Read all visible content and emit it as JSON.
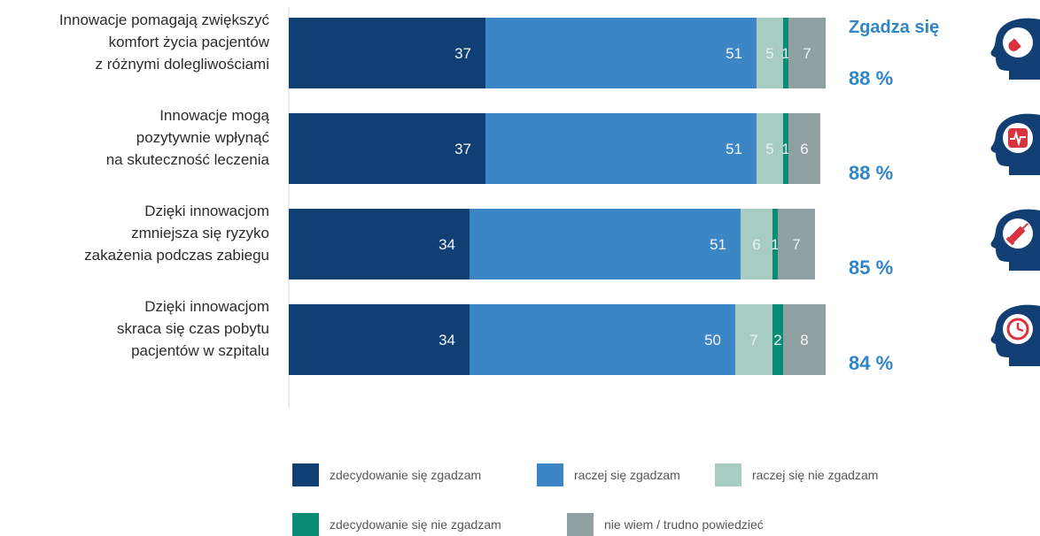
{
  "chart_data": {
    "type": "bar",
    "orientation": "horizontal",
    "stacked": true,
    "categories": [
      [
        "Innowacje pomagają zwiększyć",
        "komfort życia pacjentów",
        "z różnymi dolegliwościami"
      ],
      [
        "Innowacje mogą",
        "pozytywnie wpłynąć",
        "na skuteczność leczenia"
      ],
      [
        "Dzięki innowacjom",
        "zmniejsza się ryzyko",
        "zakażenia podczas zabiegu"
      ],
      [
        "Dzięki innowacjom",
        "skraca się czas pobytu",
        "pacjentów w szpitalu"
      ]
    ],
    "series": [
      {
        "name": "zdecydowanie się zgadzam",
        "color": "#0f3f73",
        "values": [
          37,
          37,
          34,
          34
        ]
      },
      {
        "name": "raczej się zgadzam",
        "color": "#3c86c6",
        "values": [
          51,
          51,
          51,
          50
        ]
      },
      {
        "name": "raczej się nie zgadzam",
        "color": "#a7cdc3",
        "values": [
          5,
          5,
          6,
          7
        ]
      },
      {
        "name": "zdecydowanie się nie zgadzam",
        "color": "#0a8c74",
        "values": [
          1,
          1,
          1,
          2
        ]
      },
      {
        "name": "nie wiem / trudno powiedzieć",
        "color": "#8fa0a3",
        "values": [
          7,
          6,
          7,
          8
        ]
      }
    ],
    "agree_title": "Zgadza się",
    "agree_totals": [
      "88 %",
      "88 %",
      "85 %",
      "84 %"
    ],
    "xlim": [
      0,
      100
    ],
    "legend_position": "bottom",
    "grid": false
  },
  "icons": [
    "pill-icon",
    "heart-monitor-icon",
    "syringe-icon",
    "clock-icon"
  ],
  "colors": {
    "accent": "#2f86c8",
    "icon_head": "#123f73"
  }
}
